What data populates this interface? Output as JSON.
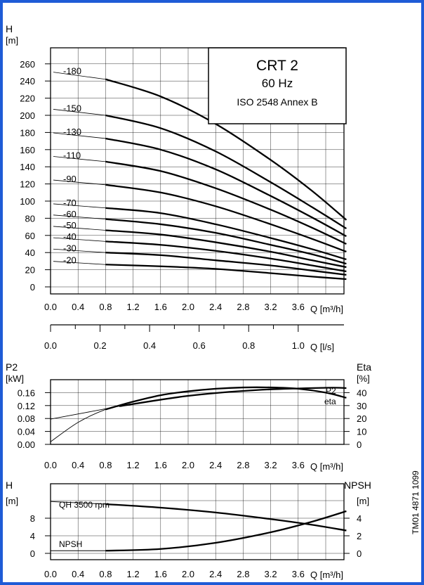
{
  "border_color": "#1e5bd6",
  "chart_data": [
    {
      "type": "line",
      "ylabel": "H",
      "yunit": "[m]",
      "xlabel": "Q [m³/h]",
      "xlim": [
        0,
        4.5
      ],
      "ylim": [
        0,
        270
      ],
      "xticks": [
        "0.0",
        "0.4",
        "0.8",
        "1.2",
        "1.6",
        "2.0",
        "2.4",
        "2.8",
        "3.2",
        "3.6"
      ],
      "yticks": [
        "0",
        "20",
        "40",
        "60",
        "80",
        "100",
        "120",
        "140",
        "160",
        "180",
        "200",
        "220",
        "240",
        "260"
      ],
      "grid": true,
      "title_box": {
        "line1": "CRT 2",
        "line2": "60 Hz",
        "line3": "ISO 2548 Annex B"
      },
      "series": [
        {
          "name": "-180",
          "x": [
            0.8,
            1.6,
            2.4,
            3.2,
            3.8,
            4.3
          ],
          "y": [
            242,
            222,
            190,
            148,
            112,
            78
          ]
        },
        {
          "name": "-150",
          "x": [
            0.8,
            1.6,
            2.4,
            3.2,
            3.8,
            4.3
          ],
          "y": [
            200,
            185,
            158,
            122,
            93,
            68
          ]
        },
        {
          "name": "-130",
          "x": [
            0.8,
            1.6,
            2.4,
            3.2,
            3.8,
            4.3
          ],
          "y": [
            173,
            160,
            137,
            106,
            81,
            59
          ]
        },
        {
          "name": "-110",
          "x": [
            0.8,
            1.6,
            2.4,
            3.2,
            3.8,
            4.3
          ],
          "y": [
            146,
            135,
            115,
            90,
            69,
            50
          ]
        },
        {
          "name": "-90",
          "x": [
            0.8,
            1.6,
            2.4,
            3.2,
            3.8,
            4.3
          ],
          "y": [
            119,
            110,
            94,
            73,
            56,
            41
          ]
        },
        {
          "name": "-70",
          "x": [
            0.8,
            1.6,
            2.4,
            3.2,
            3.8,
            4.3
          ],
          "y": [
            92,
            86,
            73,
            57,
            44,
            32
          ]
        },
        {
          "name": "-60",
          "x": [
            0.8,
            1.6,
            2.4,
            3.2,
            3.8,
            4.3
          ],
          "y": [
            79,
            73,
            63,
            49,
            38,
            27
          ]
        },
        {
          "name": "-50",
          "x": [
            0.8,
            1.6,
            2.4,
            3.2,
            3.8,
            4.3
          ],
          "y": [
            66,
            61,
            52,
            41,
            31,
            23
          ]
        },
        {
          "name": "-40",
          "x": [
            0.8,
            1.6,
            2.4,
            3.2,
            3.8,
            4.3
          ],
          "y": [
            53,
            49,
            42,
            33,
            25,
            18
          ]
        },
        {
          "name": "-30",
          "x": [
            0.8,
            1.6,
            2.4,
            3.2,
            3.8,
            4.3
          ],
          "y": [
            40,
            37,
            31,
            25,
            19,
            14
          ]
        },
        {
          "name": "-20",
          "x": [
            0.8,
            1.6,
            2.4,
            3.2,
            3.8,
            4.3
          ],
          "y": [
            26,
            24,
            21,
            16,
            12,
            9
          ]
        }
      ]
    },
    {
      "type": "axis",
      "xlabel": "Q [l/s]",
      "xticks": [
        "0.0",
        "0.2",
        "0.4",
        "0.6",
        "0.8",
        "1.0"
      ]
    },
    {
      "type": "line",
      "ylabel": "P2",
      "yunit": "[kW]",
      "y2label": "Eta",
      "y2unit": "[%]",
      "xlabel": "Q [m³/h]",
      "xticks": [
        "0.0",
        "0.4",
        "0.8",
        "1.2",
        "1.6",
        "2.0",
        "2.4",
        "2.8",
        "3.2",
        "3.6"
      ],
      "yticks": [
        "0.00",
        "0.04",
        "0.08",
        "0.12",
        "0.16"
      ],
      "y2ticks": [
        "0",
        "10",
        "20",
        "30",
        "40"
      ],
      "ylim": [
        0,
        0.2
      ],
      "y2lim": [
        0,
        50
      ],
      "grid": true,
      "series": [
        {
          "name": "P2",
          "x": [
            0.0,
            1.0,
            2.0,
            3.0,
            4.0,
            4.3
          ],
          "y": [
            0.078,
            0.118,
            0.15,
            0.168,
            0.175,
            0.174
          ]
        },
        {
          "name": "eta",
          "x": [
            0.0,
            0.4,
            0.8,
            1.2,
            1.6,
            2.0,
            2.4,
            2.8,
            3.2,
            3.6,
            4.0,
            4.3
          ],
          "y": [
            2,
            17,
            27,
            33,
            38,
            41,
            43,
            44,
            44,
            43,
            40,
            36
          ]
        }
      ]
    },
    {
      "type": "line",
      "ylabel": "H",
      "yunit": "[m]",
      "y2label": "NPSH",
      "y2unit": "[m]",
      "xlabel": "Q [m³/h]",
      "xticks": [
        "0.0",
        "0.4",
        "0.8",
        "1.2",
        "1.6",
        "2.0",
        "2.4",
        "2.8",
        "3.2",
        "3.6"
      ],
      "yticks": [
        "0",
        "4",
        "8"
      ],
      "y2ticks": [
        "0",
        "2",
        "4"
      ],
      "ylim": [
        0,
        12
      ],
      "y2lim": [
        0,
        6
      ],
      "grid": true,
      "labels": {
        "qh": "QH 3500 rpm",
        "npsh": "NPSH"
      },
      "series": [
        {
          "name": "QH 3500 rpm",
          "x": [
            0.8,
            1.6,
            2.4,
            3.2,
            3.8,
            4.3
          ],
          "y": [
            11.2,
            10.4,
            9.3,
            7.8,
            6.5,
            5.2
          ]
        },
        {
          "name": "NPSH",
          "x": [
            0.8,
            1.6,
            2.4,
            3.2,
            3.8,
            4.3
          ],
          "y": [
            0.3,
            0.5,
            1.2,
            2.4,
            3.6,
            4.8
          ]
        }
      ]
    }
  ],
  "doc_code": "TM01 4871 1099"
}
